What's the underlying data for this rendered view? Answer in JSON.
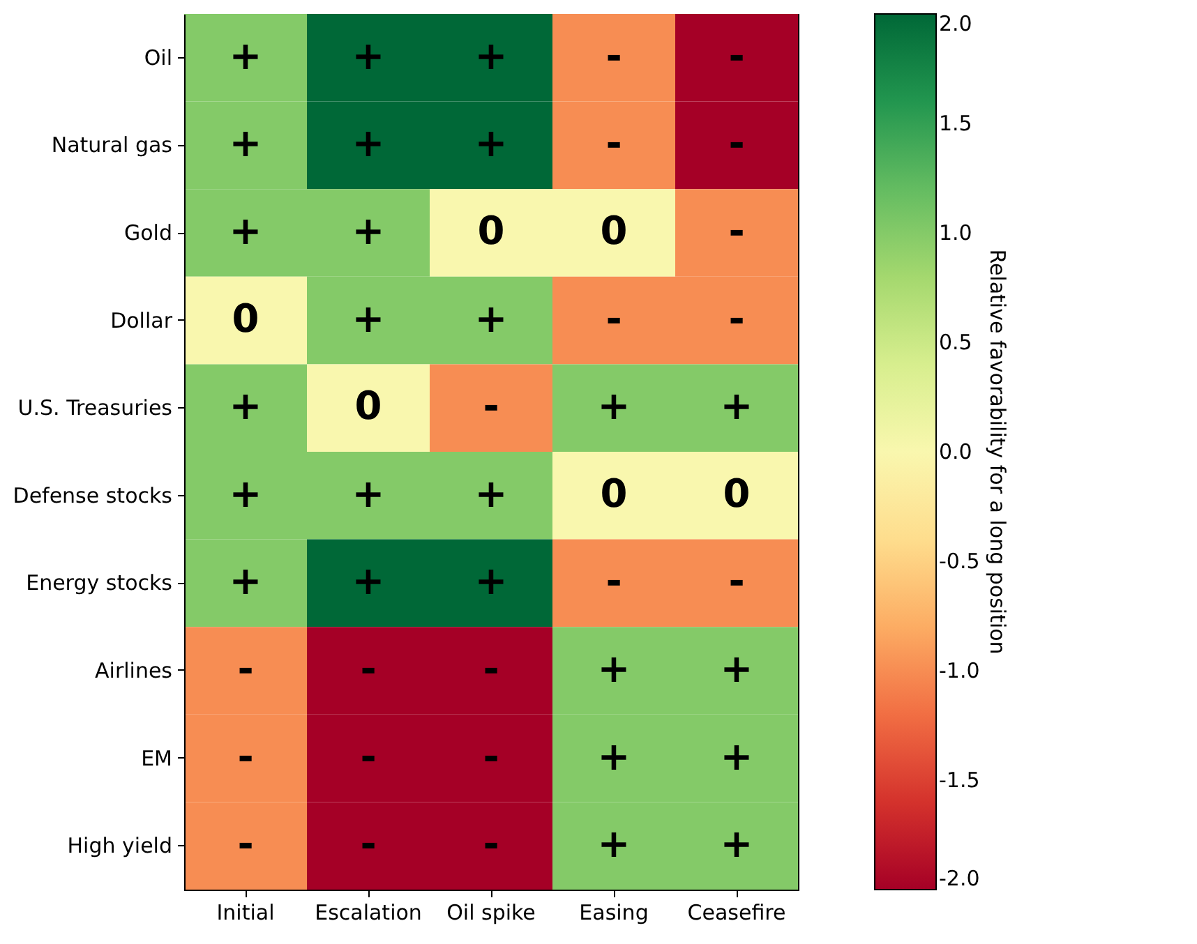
{
  "chart_data": {
    "type": "heatmap",
    "categories": [
      "Initial",
      "Escalation",
      "Oil spike",
      "Easing",
      "Ceasefire"
    ],
    "y_categories": [
      "Oil",
      "Natural gas",
      "Gold",
      "Dollar",
      "U.S. Treasuries",
      "Defense stocks",
      "Energy stocks",
      "Airlines",
      "EM",
      "High yield"
    ],
    "cells": [
      [
        1,
        2,
        2,
        -1,
        -2
      ],
      [
        1,
        2,
        2,
        -1,
        -2
      ],
      [
        1,
        1,
        0,
        0,
        -1
      ],
      [
        0,
        1,
        1,
        -1,
        -1
      ],
      [
        1,
        0,
        -1,
        1,
        1
      ],
      [
        1,
        1,
        1,
        0,
        0
      ],
      [
        1,
        2,
        2,
        -1,
        -1
      ],
      [
        -1,
        -2,
        -2,
        1,
        1
      ],
      [
        -1,
        -2,
        -2,
        1,
        1
      ],
      [
        -1,
        -2,
        -2,
        1,
        1
      ]
    ],
    "cell_labels": [
      [
        "+",
        "+",
        "+",
        "-",
        "-"
      ],
      [
        "+",
        "+",
        "+",
        "-",
        "-"
      ],
      [
        "+",
        "+",
        "0",
        "0",
        "-"
      ],
      [
        "0",
        "+",
        "+",
        "-",
        "-"
      ],
      [
        "+",
        "0",
        "-",
        "+",
        "+"
      ],
      [
        "+",
        "+",
        "+",
        "0",
        "0"
      ],
      [
        "+",
        "+",
        "+",
        "-",
        "-"
      ],
      [
        "-",
        "-",
        "-",
        "+",
        "+"
      ],
      [
        "-",
        "-",
        "-",
        "+",
        "+"
      ],
      [
        "-",
        "-",
        "-",
        "+",
        "+"
      ]
    ],
    "clabel": "Relative favorability for a long position",
    "clim": [
      -2,
      2
    ],
    "cticks": [
      {
        "value": -2,
        "label": "-2.0"
      },
      {
        "value": -1.5,
        "label": "-1.5"
      },
      {
        "value": -1,
        "label": "-1.0"
      },
      {
        "value": -0.5,
        "label": "-0.5"
      },
      {
        "value": 0,
        "label": "0.0"
      },
      {
        "value": 0.5,
        "label": "0.5"
      },
      {
        "value": 1,
        "label": "1.0"
      },
      {
        "value": 1.5,
        "label": "1.5"
      },
      {
        "value": 2,
        "label": "2.0"
      }
    ]
  }
}
